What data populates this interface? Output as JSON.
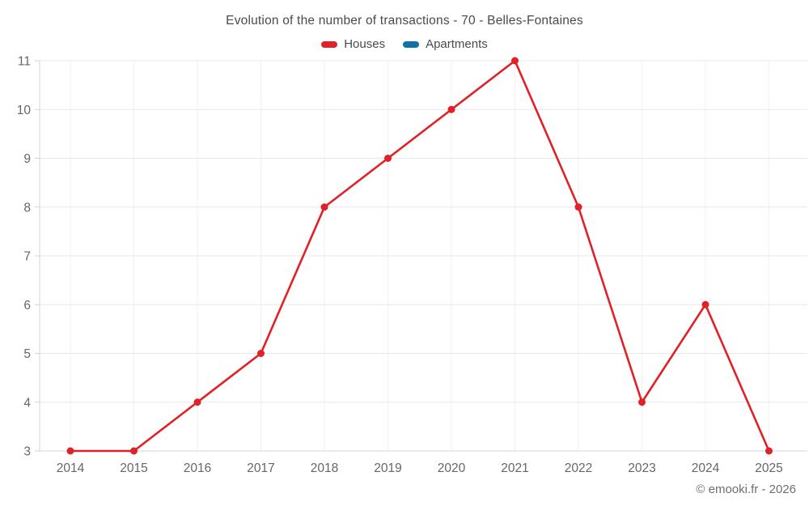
{
  "title": "Evolution of the number of transactions - 70 - Belles-Fontaines",
  "footer": "© emooki.fr - 2026",
  "legend": {
    "items": [
      {
        "label": "Houses",
        "color": "#e02127"
      },
      {
        "label": "Apartments",
        "color": "#0f73a5"
      }
    ]
  },
  "colors": {
    "houses": "#e02127",
    "apartments": "#0f73a5",
    "h_gridline": "#e8e8e8",
    "v_gridline": "#f1f1f1",
    "axis_line": "#d4d4d4",
    "axis_text": "#666666",
    "title_text": "#4a4a4a"
  },
  "chart_data": {
    "type": "line",
    "title": "Evolution of the number of transactions - 70 - Belles-Fontaines",
    "categories": [
      "2014",
      "2015",
      "2016",
      "2017",
      "2018",
      "2019",
      "2020",
      "2021",
      "2022",
      "2023",
      "2024",
      "2025"
    ],
    "series": [
      {
        "name": "Houses",
        "color": "#e02127",
        "values": [
          3,
          3,
          4,
          5,
          8,
          9,
          10,
          11,
          8,
          4,
          6,
          3
        ]
      },
      {
        "name": "Apartments",
        "color": "#0f73a5",
        "values": []
      }
    ],
    "y_ticks": [
      3,
      4,
      5,
      6,
      7,
      8,
      9,
      10,
      11
    ],
    "ylim": [
      3,
      11
    ],
    "xlabel": "",
    "ylabel": "",
    "grid": true,
    "legend_position": "top",
    "marker": "circle"
  }
}
